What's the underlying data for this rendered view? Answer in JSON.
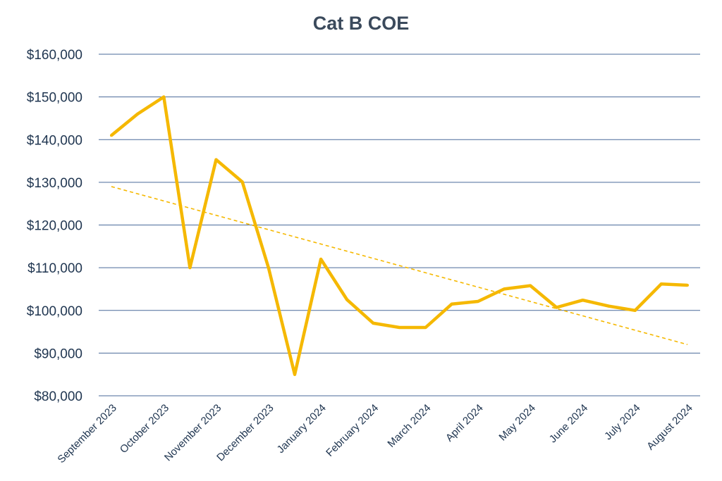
{
  "chart_data": {
    "type": "line",
    "title": "Cat B COE",
    "ylim": [
      80000,
      160000
    ],
    "ytick_values": [
      80000,
      90000,
      100000,
      110000,
      120000,
      130000,
      140000,
      150000,
      160000
    ],
    "ytick_labels": [
      "$80,000",
      "$90,000",
      "$100,000",
      "$110,000",
      "$120,000",
      "$130,000",
      "$140,000",
      "$150,000",
      "$160,000"
    ],
    "x_labels": [
      "September 2023",
      "October 2023",
      "November 2023",
      "December 2023",
      "January 2024",
      "February 2024",
      "March 2024",
      "April 2024",
      "May 2024",
      "June 2024",
      "July 2024",
      "August 2024"
    ],
    "series": [
      {
        "values": [
          141000,
          146000,
          150000,
          110000,
          135300,
          130100,
          110000,
          85000,
          112000,
          102500,
          97000,
          96000,
          96000,
          101500,
          102100,
          105000,
          105800,
          100700,
          102400,
          101000,
          100000,
          106200,
          105900
        ],
        "color": "#f5b800"
      }
    ],
    "trendline": {
      "start": 129000,
      "end": 92000,
      "color": "#f5b800",
      "style": "dashed"
    },
    "grid": true,
    "grid_color": "#4a6a9a"
  }
}
